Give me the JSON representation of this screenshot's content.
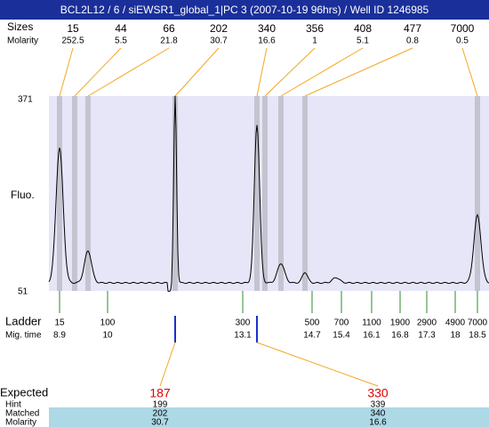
{
  "header": {
    "title": "BCL2L12 / 6 / siEWSR1_global_1|PC 3 (2007-10-19 96hrs) / Well ID 1246985"
  },
  "peaks": {
    "label_sizes": "Sizes",
    "label_molarity": "Molarity",
    "sizes": [
      15,
      44,
      66,
      202,
      340,
      356,
      408,
      477,
      7000
    ],
    "molarity": [
      252.5,
      5.5,
      21.8,
      30.7,
      16.6,
      1,
      5.1,
      0.8,
      0.5
    ]
  },
  "axis": {
    "label": "Fluo.",
    "top": 371,
    "bottom": 51
  },
  "ladder": {
    "label": "Ladder",
    "mig_label": "Mig. time",
    "sizes": [
      15,
      100,
      300,
      500,
      700,
      1100,
      1900,
      2900,
      4900,
      7000
    ],
    "mig_times": [
      8.9,
      10,
      13.1,
      14.7,
      15.4,
      16.1,
      16.8,
      17.3,
      18,
      18.5
    ]
  },
  "expected": {
    "labels": {
      "expected": "Expected",
      "hint": "Hint",
      "matched": "Matched",
      "molarity": "Molarity"
    },
    "columns": [
      {
        "expected": 187,
        "hint": 199,
        "matched": 202,
        "molarity": 30.7
      },
      {
        "expected": 330,
        "hint": 339,
        "matched": 340,
        "molarity": 16.6
      }
    ]
  }
}
